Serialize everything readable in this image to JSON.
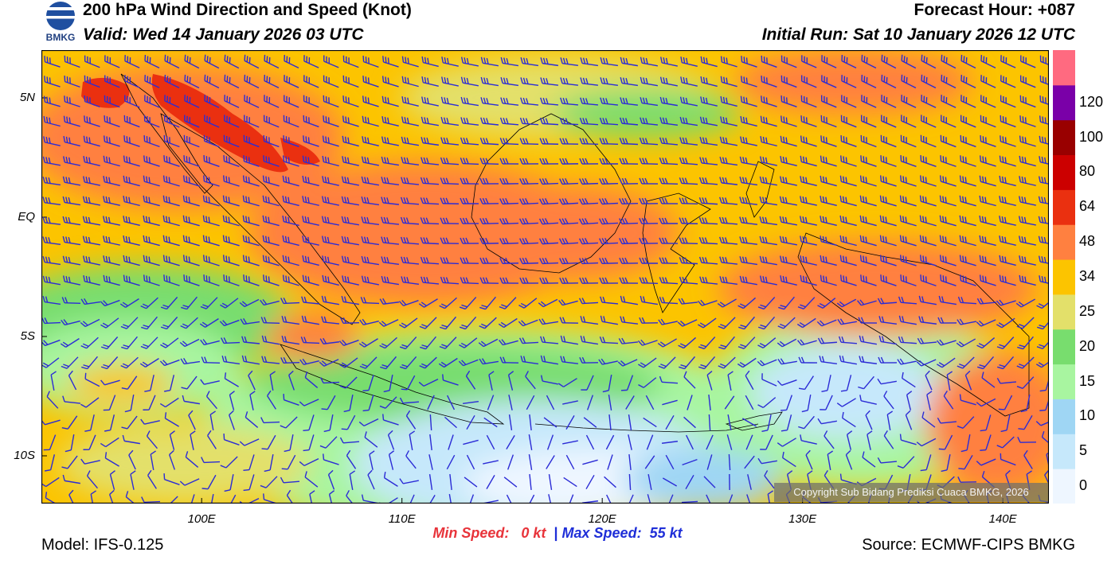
{
  "header": {
    "logo_text": "BMKG",
    "title": "200 hPa Wind Direction and Speed (Knot)",
    "valid": "Valid: Wed 14 January 2026 03 UTC",
    "forecast_hour": "Forecast Hour: +087",
    "initial_run": "Initial Run: Sat 10 January 2026 12 UTC"
  },
  "map": {
    "lat_labels": [
      "5N",
      "EQ",
      "5S",
      "10S"
    ],
    "lat_values": [
      5,
      0,
      -5,
      -10
    ],
    "lon_labels": [
      "100E",
      "110E",
      "120E",
      "130E",
      "140E"
    ],
    "lon_values": [
      100,
      110,
      120,
      130,
      140
    ],
    "lon_range": [
      92,
      142.3
    ],
    "lat_range": [
      -12,
      7
    ],
    "barb_color": "#2b2bd6",
    "land_outline": "#000000"
  },
  "colorbar": {
    "labels": [
      "0",
      "5",
      "10",
      "15",
      "20",
      "25",
      "34",
      "48",
      "64",
      "80",
      "100",
      "120"
    ],
    "colors": [
      "#eef6ff",
      "#c6e8fb",
      "#9fd6f4",
      "#a8f5a0",
      "#78dd6e",
      "#e3e06a",
      "#fcc400",
      "#ff8040",
      "#ea3010",
      "#cc0000",
      "#990000",
      "#7a00a8",
      "#ff6a80"
    ]
  },
  "footer": {
    "min_label": "Min Speed:",
    "min_value": "0 kt",
    "separator": "|",
    "max_label": "Max Speed:",
    "max_value": "55 kt",
    "model": "Model: IFS-0.125",
    "source": "Source: ECMWF-CIPS BMKG",
    "copyright": "Copyright Sub Bidang Prediksi Cuaca BMKG, 2026"
  }
}
